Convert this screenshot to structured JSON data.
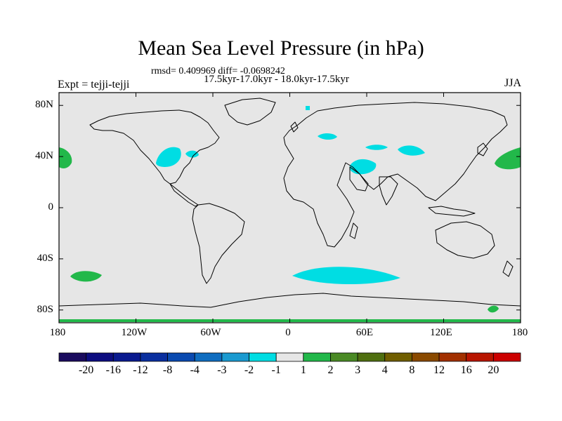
{
  "title": "Mean Sea Level Pressure (in hPa)",
  "stats_line": "rmsd= 0.409969 diff= -0.0698242",
  "period_line": "17.5kyr-17.0kyr - 18.0kyr-17.5kyr",
  "experiment": "Expt = tejji-tejji",
  "season": "JJA",
  "lat_labels": [
    "80N",
    "40N",
    "0",
    "40S",
    "80S"
  ],
  "lon_labels": [
    "180",
    "120W",
    "60W",
    "0",
    "60E",
    "120E",
    "180"
  ],
  "colorbar": {
    "labels": [
      "-20",
      "-16",
      "-12",
      "-8",
      "-4",
      "-3",
      "-2",
      "-1",
      "1",
      "2",
      "3",
      "4",
      "8",
      "12",
      "16",
      "20"
    ],
    "colors": [
      "#1a0b5e",
      "#0d0d80",
      "#0a1a8f",
      "#0a2f9f",
      "#0a4ab0",
      "#0f6dc0",
      "#1a9ad0",
      "#00dde3",
      "#e6e6e6",
      "#22b84a",
      "#4a8a25",
      "#4f6f10",
      "#705e00",
      "#8a4a00",
      "#a23000",
      "#b81500",
      "#cc0000"
    ]
  },
  "colors": {
    "ocean_background": "#e6e6e6",
    "negative_fill": "#00dde3",
    "positive_fill": "#22b84a"
  }
}
